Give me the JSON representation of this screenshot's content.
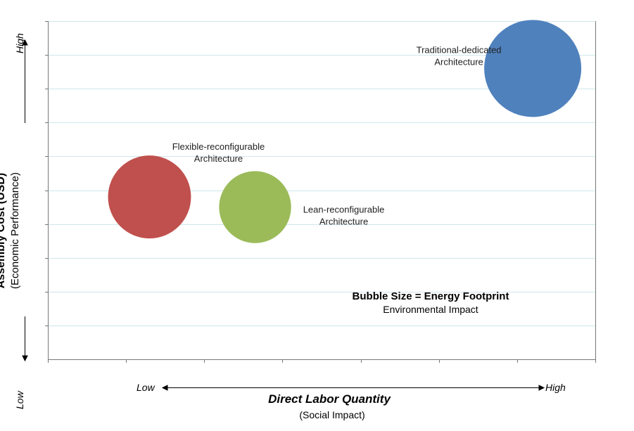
{
  "chart_data": {
    "type": "bubble",
    "xlabel": "Direct Labor Quantity",
    "xlabel_sub": "(Social Impact)",
    "ylabel": "Assembly Cost (USD)",
    "ylabel_sub": "(Economic Performance)",
    "x_low_label": "Low",
    "x_high_label": "High",
    "y_low_label": "Low",
    "y_high_label": "High",
    "xlim": [
      0,
      7
    ],
    "ylim": [
      0,
      10
    ],
    "grid": "horizontal",
    "bubbles": [
      {
        "label_line1": "Traditional-dedicated",
        "label_line2": "Architecture",
        "x": 6.2,
        "y": 8.6,
        "size": 1.0,
        "color": "#4F81BD"
      },
      {
        "label_line1": "Flexible-reconfigurable",
        "label_line2": "Architecture",
        "x": 1.3,
        "y": 4.8,
        "size": 0.73,
        "color": "#C0504D"
      },
      {
        "label_line1": "Lean-reconfigurable",
        "label_line2": "Architecture",
        "x": 2.65,
        "y": 4.5,
        "size": 0.55,
        "color": "#9BBB59"
      }
    ],
    "note_main": "Bubble Size = Energy Footprint",
    "note_sub": "Environmental Impact"
  }
}
